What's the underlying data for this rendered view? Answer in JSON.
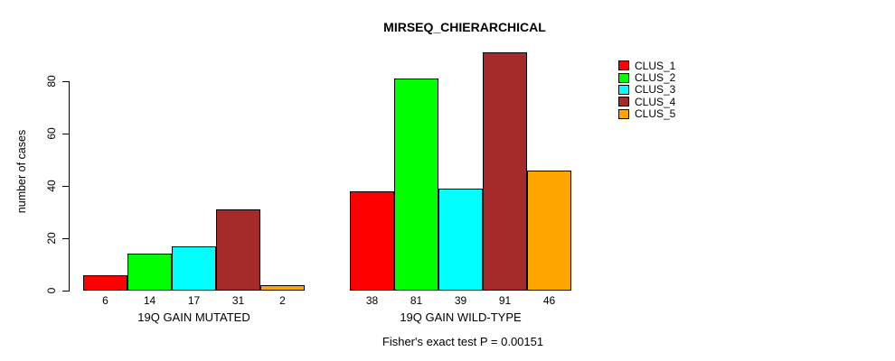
{
  "title": "MIRSEQ_CHIERARCHICAL",
  "footer": "Fisher's exact test P = 0.00151",
  "chart_data": {
    "type": "bar",
    "title": "MIRSEQ_CHIERARCHICAL",
    "categories": [
      "19Q GAIN MUTATED",
      "19Q GAIN WILD-TYPE"
    ],
    "series": [
      {
        "name": "CLUS_1",
        "color": "#FF0000",
        "values": [
          6,
          38
        ]
      },
      {
        "name": "CLUS_2",
        "color": "#00FF00",
        "values": [
          14,
          81
        ]
      },
      {
        "name": "CLUS_3",
        "color": "#00FFFF",
        "values": [
          17,
          39
        ]
      },
      {
        "name": "CLUS_4",
        "color": "#A52A2A",
        "values": [
          31,
          91
        ]
      },
      {
        "name": "CLUS_5",
        "color": "#FFA500",
        "values": [
          2,
          46
        ]
      }
    ],
    "xlabel": "",
    "ylabel": "number of cases",
    "yticks": [
      0,
      20,
      40,
      60,
      80
    ],
    "ylim": [
      0,
      91
    ],
    "grid": false,
    "bar_value_labels_shown": true,
    "legend_position": "right",
    "annotation": "Fisher's exact test P = 0.00151",
    "axis_color": "#000000",
    "background_color": "#FFFFFF"
  }
}
